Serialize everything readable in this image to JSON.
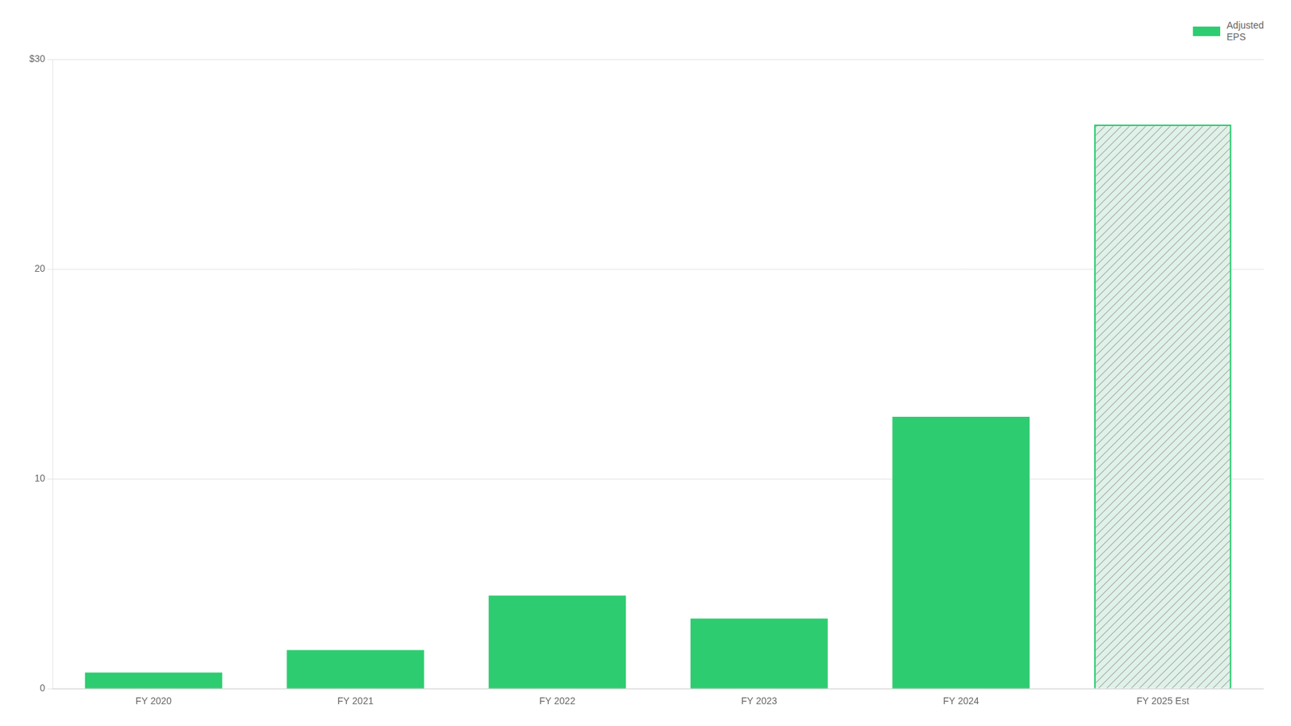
{
  "chart_data": {
    "type": "bar",
    "categories": [
      "FY 2020",
      "FY 2021",
      "FY 2022",
      "FY 2023",
      "FY 2024",
      "FY 2025 Est"
    ],
    "series": [
      {
        "name": "Adjusted\nEPS",
        "color": "#2ecc71",
        "colors": [
          "#2ecc71",
          "#2ecc71",
          "#2ecc71",
          "#2ecc71",
          "#2ecc71",
          "#dff2e8"
        ],
        "values": [
          0.77,
          1.84,
          4.44,
          3.34,
          12.96,
          26.9
        ]
      }
    ],
    "ylim": [
      0,
      30
    ],
    "yticks": [
      0,
      10,
      20,
      {
        "value": 30,
        "label": "$30"
      }
    ],
    "grid": true,
    "legend": "upper right"
  }
}
